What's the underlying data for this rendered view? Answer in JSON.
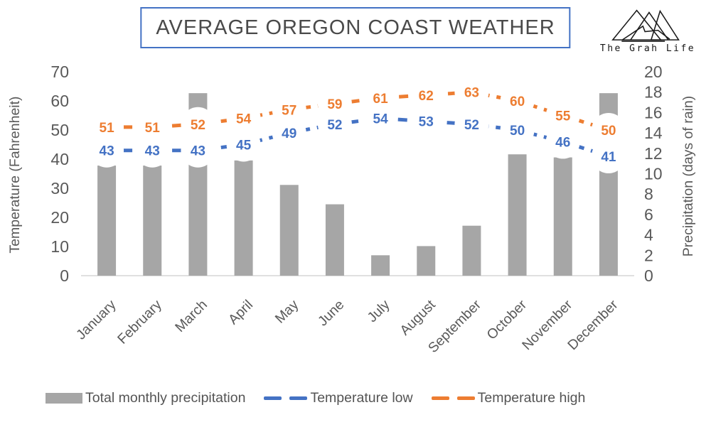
{
  "title": "AVERAGE OREGON COAST WEATHER",
  "logo": {
    "icon": "mountains-icon",
    "text": "The Grah Life"
  },
  "chart_data": {
    "type": "combo",
    "title": "AVERAGE OREGON COAST WEATHER",
    "categories": [
      "January",
      "February",
      "March",
      "April",
      "May",
      "June",
      "July",
      "August",
      "September",
      "October",
      "November",
      "December"
    ],
    "series": [
      {
        "name": "Total monthly precipitation",
        "type": "bar",
        "axis": "right",
        "color": "#A6A6A6",
        "values": [
          10.8,
          10.8,
          17.9,
          11.3,
          8.9,
          7.0,
          2.0,
          2.9,
          4.9,
          11.9,
          11.6,
          17.9
        ]
      },
      {
        "name": "Temperature low",
        "type": "line",
        "style": "dashed",
        "axis": "left",
        "color": "#4472C4",
        "values": [
          43,
          43,
          43,
          45,
          49,
          52,
          54,
          53,
          52,
          50,
          46,
          41
        ]
      },
      {
        "name": "Temperature high",
        "type": "line",
        "style": "dashed",
        "axis": "left",
        "color": "#ED7D31",
        "values": [
          51,
          51,
          52,
          54,
          57,
          59,
          61,
          62,
          63,
          60,
          55,
          50
        ]
      }
    ],
    "left_axis": {
      "title": "Temperature (Fahrenheit)",
      "min": 0,
      "max": 70,
      "ticks": [
        0,
        10,
        20,
        30,
        40,
        50,
        60,
        70
      ]
    },
    "right_axis": {
      "title": "Precipitation (days of rain)",
      "min": 0,
      "max": 20,
      "ticks": [
        0,
        2,
        4,
        6,
        8,
        10,
        12,
        14,
        16,
        18,
        20
      ]
    },
    "grid": false,
    "legend_position": "bottom",
    "data_labels_on": [
      "Temperature low",
      "Temperature high"
    ]
  },
  "legend": {
    "items": [
      {
        "label": "Total monthly precipitation",
        "swatch": "bar",
        "color": "#A6A6A6"
      },
      {
        "label": "Temperature low",
        "swatch": "dashes",
        "color": "#4472C4"
      },
      {
        "label": "Temperature high",
        "swatch": "dashes",
        "color": "#ED7D31"
      }
    ]
  },
  "colors": {
    "background": "#FFFFFF",
    "axis_text": "#595959",
    "title_text": "#4A4A4A",
    "title_border": "#4472C4",
    "axis_line": "#D6D6D6",
    "label_halo": "#FFFFFF"
  }
}
